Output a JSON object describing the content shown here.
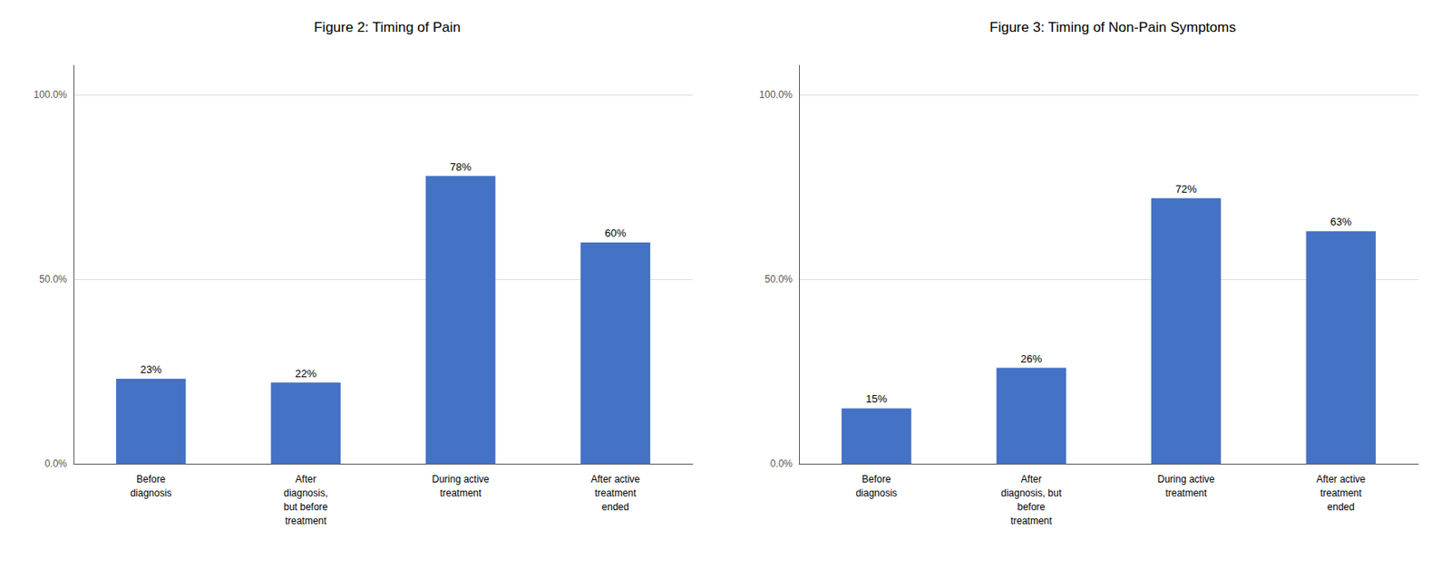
{
  "chart_data": [
    {
      "type": "bar",
      "title": "Figure 2: Timing of Pain",
      "categories": [
        "Before\ndiagnosis",
        "After\ndiagnosis,\nbut before\ntreatment",
        "During active\ntreatment",
        "After active\ntreatment\nended"
      ],
      "values": [
        0.23,
        0.22,
        0.78,
        0.6
      ],
      "value_labels": [
        "23%",
        "22%",
        "78%",
        "60%"
      ],
      "data_labels": true,
      "color": "#4472C4",
      "ylim": [
        0,
        1.08
      ],
      "yticks": [
        {
          "value": 0.0,
          "label": "0.0%"
        },
        {
          "value": 0.5,
          "label": "50.0%"
        },
        {
          "value": 1.0,
          "label": "100.0%"
        }
      ],
      "grid": true
    },
    {
      "type": "bar",
      "title": "Figure 3: Timing of Non-Pain Symptoms",
      "categories": [
        "Before\ndiagnosis",
        "After\ndiagnosis, but\nbefore\ntreatment",
        "During active\ntreatment",
        "After active\ntreatment\nended"
      ],
      "values": [
        0.15,
        0.26,
        0.72,
        0.63
      ],
      "value_labels": [
        "15%",
        "26%",
        "72%",
        "63%"
      ],
      "data_labels": true,
      "color": "#4472C4",
      "ylim": [
        0,
        1.08
      ],
      "yticks": [
        {
          "value": 0.0,
          "label": "0.0%"
        },
        {
          "value": 0.5,
          "label": "50.0%"
        },
        {
          "value": 1.0,
          "label": "100.0%"
        }
      ],
      "grid": true
    }
  ]
}
